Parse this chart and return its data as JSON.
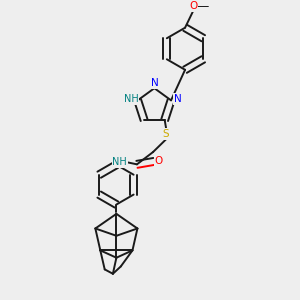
{
  "bg_color": "#eeeeee",
  "bond_color": "#1a1a1a",
  "N_color": "#0000ff",
  "O_color": "#ff0000",
  "S_color": "#ccaa00",
  "NH_color": "#008080",
  "lw": 1.4,
  "dbo": 0.012,
  "figsize": [
    3.0,
    3.0
  ],
  "dpi": 100,
  "xlim": [
    0.0,
    1.0
  ],
  "ylim": [
    0.0,
    1.0
  ]
}
